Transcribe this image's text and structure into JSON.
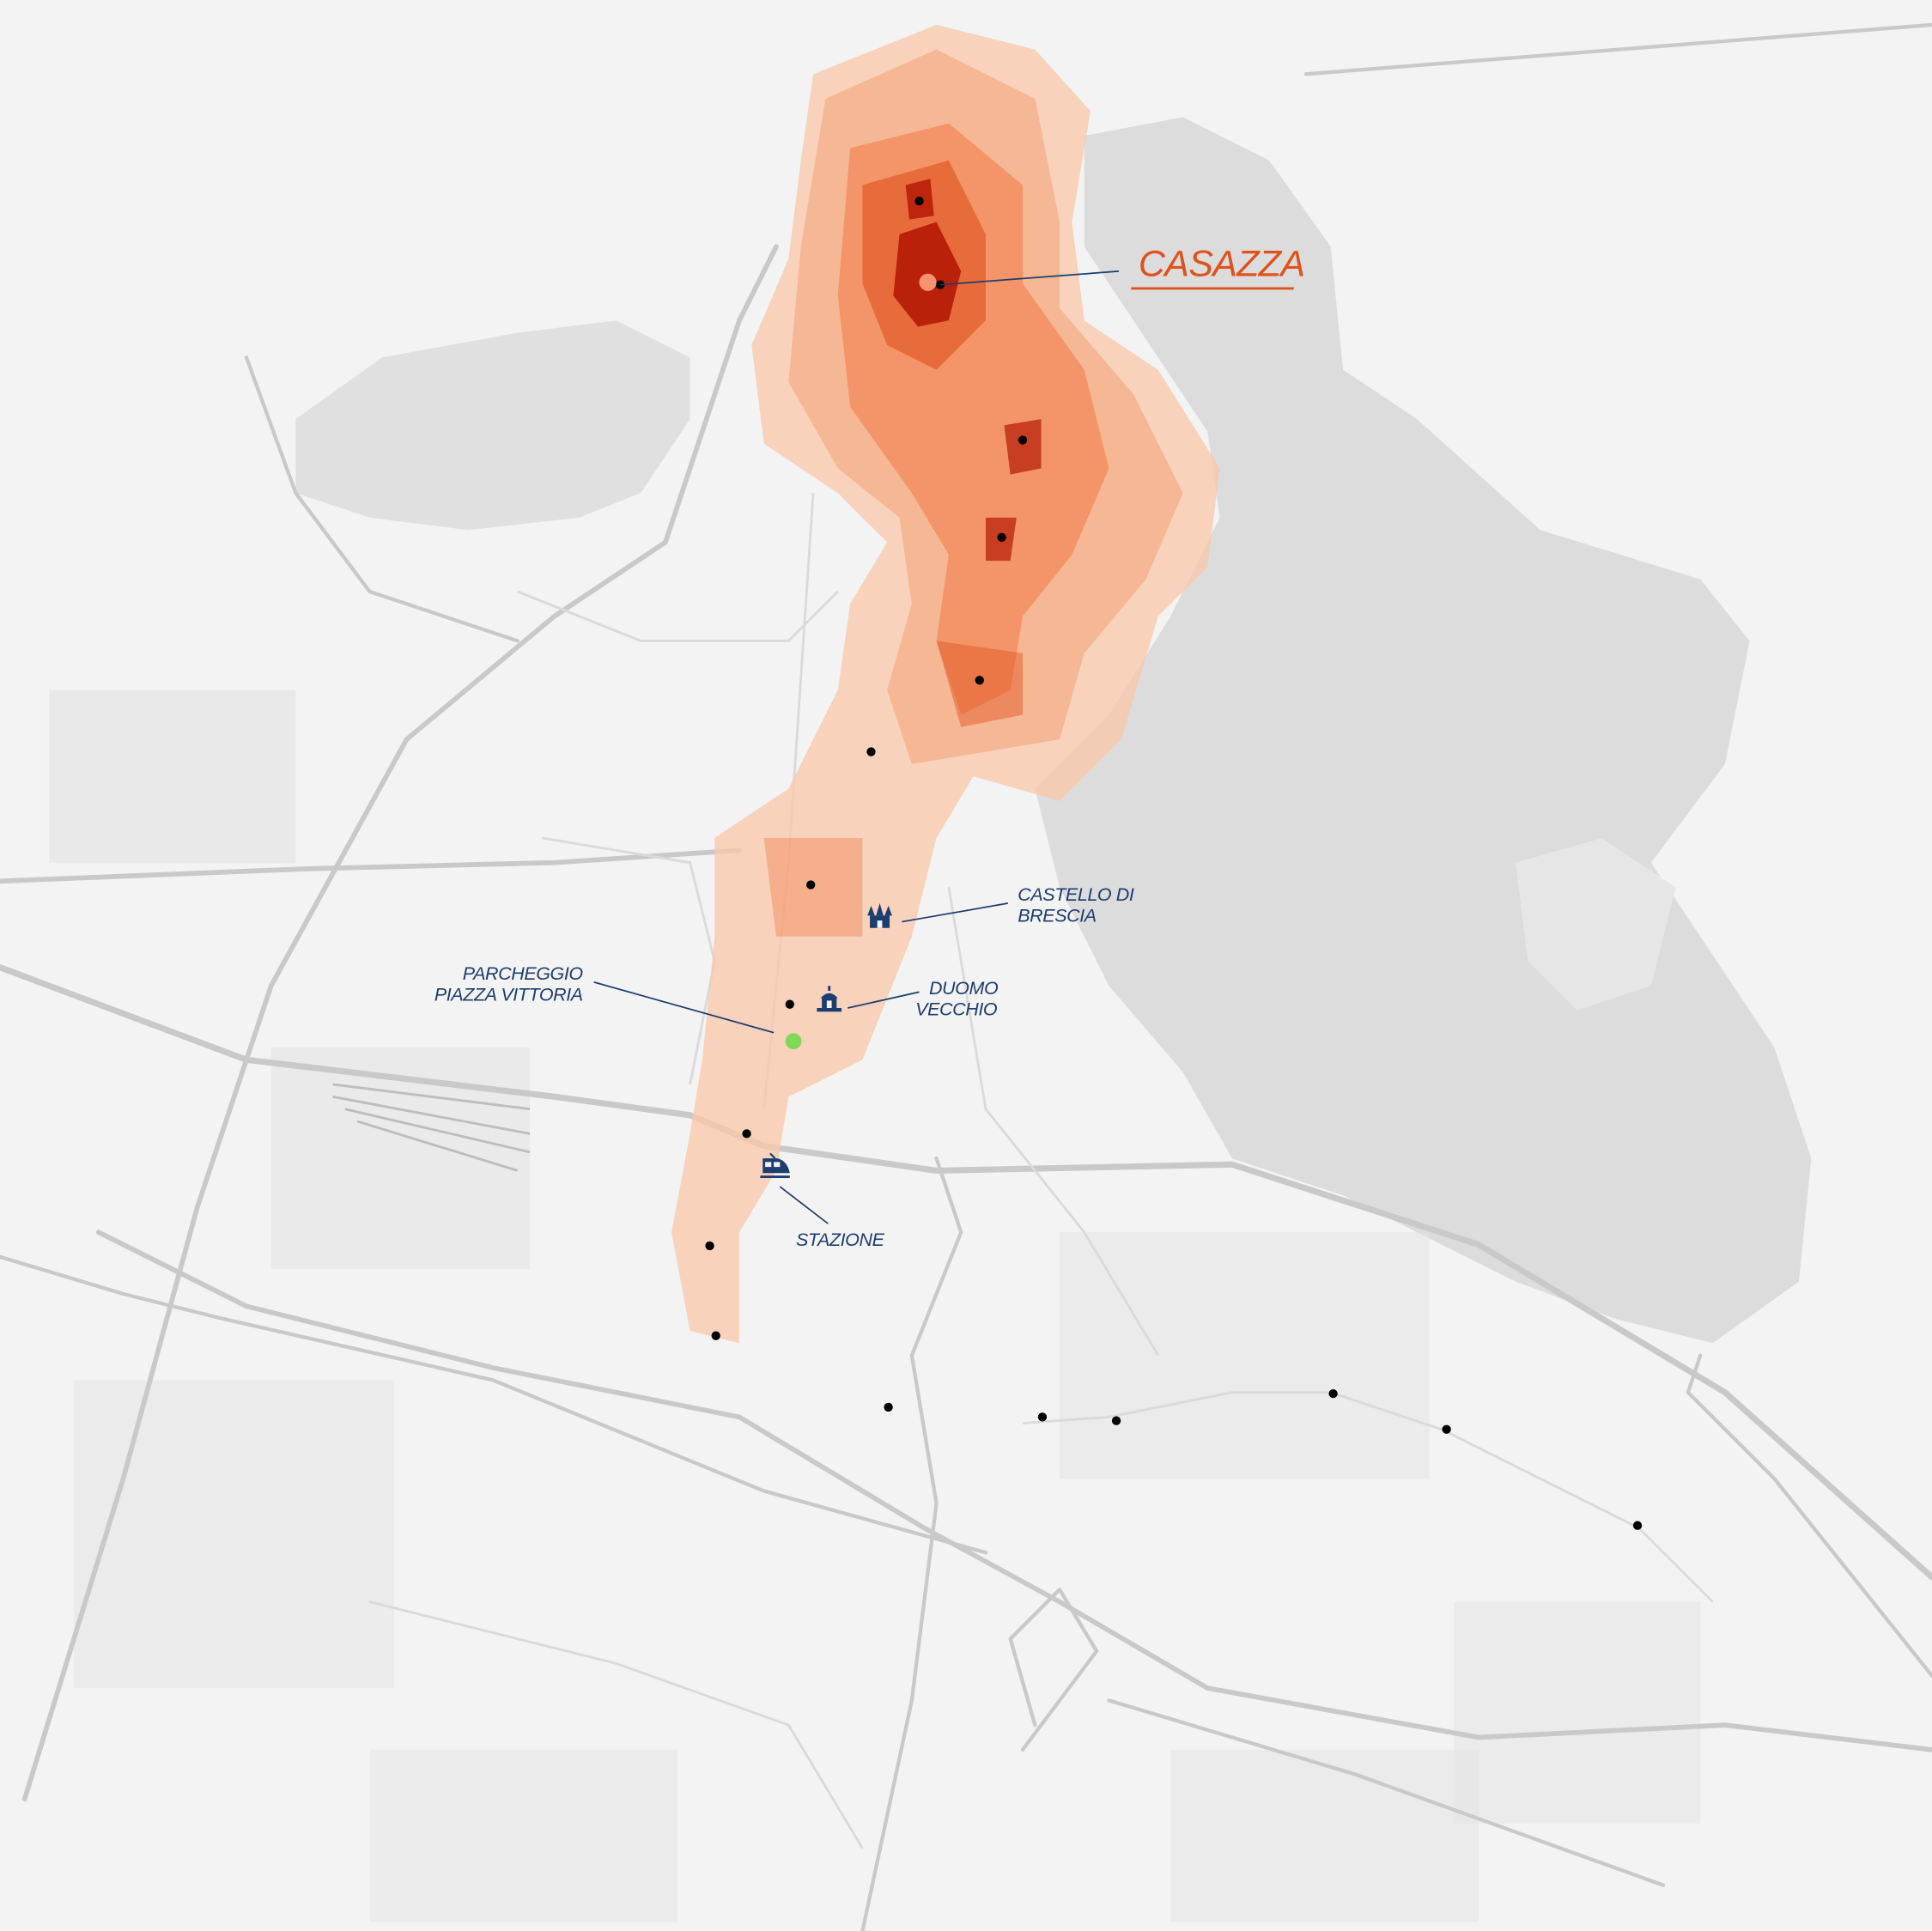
{
  "map": {
    "highlighted_place": "CASAZZA",
    "landmarks": [
      {
        "id": "castello",
        "lines": [
          "CASTELLO DI",
          "BRESCIA"
        ],
        "icon": "castle-icon"
      },
      {
        "id": "duomo",
        "lines": [
          "DUOMO",
          "VECCHIO"
        ],
        "icon": "church-icon"
      },
      {
        "id": "parcheggio",
        "lines": [
          "PARCHEGGIO",
          "PIAZZA VITTORIA"
        ],
        "icon": "green-marker"
      },
      {
        "id": "stazione",
        "lines": [
          "STAZIONE"
        ],
        "icon": "train-icon"
      }
    ],
    "colors": {
      "background": "#f3f3f3",
      "hills": "#dcdcdc",
      "roads": "#c9c9c9",
      "heat_low": "#f9c7a8",
      "heat_mid": "#f37a45",
      "heat_high": "#b51a05",
      "label": "#1d3d6e",
      "highlight": "#e0521c",
      "parking_marker": "#7ed957",
      "stop_marker": "#000000"
    }
  }
}
